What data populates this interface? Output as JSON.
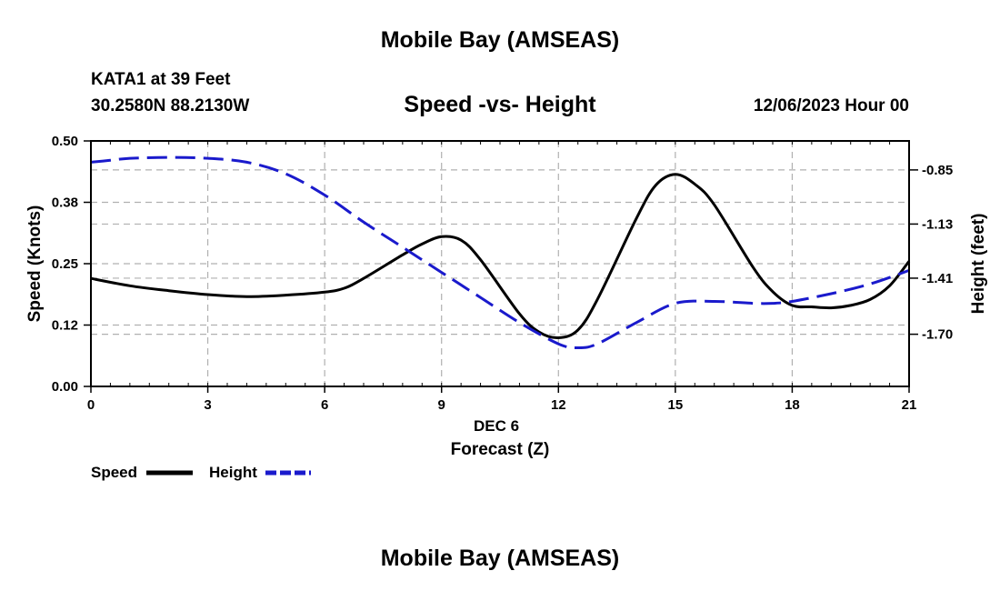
{
  "header": {
    "title": "Mobile Bay (AMSEAS)",
    "station": "KATA1 at 39 Feet",
    "coords": "30.2580N  88.2130W",
    "subtitle": "Speed -vs- Height",
    "datetime": "12/06/2023 Hour 00"
  },
  "footer": {
    "title": "Mobile Bay (AMSEAS)"
  },
  "legend": {
    "speed_label": "Speed",
    "height_label": "Height"
  },
  "colors": {
    "speed": "#000000",
    "height": "#1a1acc",
    "grid": "#b0b0b0"
  },
  "chart_data": {
    "type": "line",
    "title": "Speed -vs- Height",
    "xlabel": "Forecast (Z)",
    "xlabel_date": "DEC 6",
    "ylabel": "Speed (Knots)",
    "y2label": "Height (feet)",
    "xlim": [
      0,
      21
    ],
    "ylim": [
      0,
      0.5
    ],
    "y2lim": [
      -1.97,
      -0.7
    ],
    "xticks": [
      0,
      3,
      6,
      9,
      12,
      15,
      18,
      21
    ],
    "yticks": [
      0.0,
      0.125,
      0.25,
      0.375,
      0.5
    ],
    "ytick_labels": [
      "0.00",
      "0.12",
      "0.25",
      "0.38",
      "0.50"
    ],
    "y2ticks": [
      -1.7,
      -1.41,
      -1.13,
      -0.85
    ],
    "y2tick_labels": [
      "-1.70",
      "-1.41",
      "-1.13",
      "-0.85"
    ],
    "grid": true,
    "series": [
      {
        "name": "Speed",
        "axis": "left",
        "style": "solid",
        "x": [
          0,
          1,
          2,
          3,
          4,
          5,
          6,
          6.5,
          7,
          8,
          8.5,
          9,
          9.5,
          10,
          11,
          11.5,
          12,
          12.5,
          13,
          14,
          14.5,
          15,
          15.5,
          16,
          17,
          17.5,
          18,
          18.5,
          19,
          19.5,
          20,
          20.5,
          21
        ],
        "values": [
          0.22,
          0.205,
          0.195,
          0.187,
          0.183,
          0.186,
          0.192,
          0.2,
          0.22,
          0.268,
          0.29,
          0.305,
          0.298,
          0.258,
          0.148,
          0.111,
          0.099,
          0.115,
          0.177,
          0.342,
          0.41,
          0.432,
          0.412,
          0.37,
          0.242,
          0.193,
          0.165,
          0.162,
          0.16,
          0.165,
          0.177,
          0.205,
          0.255
        ]
      },
      {
        "name": "Height",
        "axis": "right",
        "style": "dashed",
        "x": [
          0,
          0.5,
          1,
          2,
          3,
          4,
          5,
          6,
          7,
          8,
          9,
          10,
          11,
          12,
          12.5,
          13,
          14,
          15,
          16,
          17,
          17.5,
          18,
          19,
          20,
          21
        ],
        "values": [
          -0.81,
          -0.8,
          -0.79,
          -0.785,
          -0.79,
          -0.81,
          -0.87,
          -0.98,
          -1.12,
          -1.25,
          -1.38,
          -1.51,
          -1.64,
          -1.75,
          -1.77,
          -1.75,
          -1.64,
          -1.54,
          -1.53,
          -1.54,
          -1.54,
          -1.53,
          -1.49,
          -1.44,
          -1.37
        ]
      }
    ]
  }
}
